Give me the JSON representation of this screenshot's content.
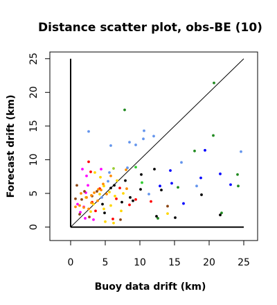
{
  "chart_data": {
    "type": "scatter",
    "title": "Distance scatter plot, obs-BE (10)",
    "xlabel": "Buoy data drift (km)",
    "ylabel": "Forecast drift (km)",
    "xlim": [
      -3,
      27
    ],
    "ylim": [
      -2,
      26
    ],
    "xticks": [
      0,
      5,
      10,
      15,
      20,
      25
    ],
    "yticks": [
      0,
      5,
      10,
      15,
      20,
      25
    ],
    "reference_line": {
      "x": [
        0,
        25
      ],
      "y": [
        0,
        25
      ]
    },
    "axes_lines": {
      "x_axis": [
        0,
        25
      ],
      "y_axis": [
        0,
        25
      ]
    },
    "grid": false,
    "legend": "none",
    "series": [
      {
        "color": "#6495ed",
        "points": [
          [
            2.6,
            14.2
          ],
          [
            5.8,
            12.1
          ],
          [
            8.5,
            12.6
          ],
          [
            9.4,
            12.2
          ],
          [
            10.6,
            14.3
          ],
          [
            10.5,
            13.1
          ],
          [
            12.0,
            13.5
          ],
          [
            8.2,
            8.8
          ],
          [
            11.3,
            4.9
          ],
          [
            5.6,
            8.1
          ],
          [
            5.4,
            6.8
          ],
          [
            4.5,
            4.4
          ],
          [
            16.0,
            9.6
          ],
          [
            18.2,
            6.1
          ],
          [
            24.6,
            11.2
          ]
        ]
      },
      {
        "color": "#0000ff",
        "points": [
          [
            14.4,
            8.4
          ],
          [
            14.6,
            6.5
          ],
          [
            12.9,
            6.1
          ],
          [
            19.4,
            11.4
          ],
          [
            18.8,
            7.3
          ],
          [
            21.6,
            7.9
          ],
          [
            23.1,
            6.3
          ],
          [
            16.3,
            3.5
          ]
        ]
      },
      {
        "color": "#32cd32",
        "points": [
          [
            10.3,
            6.6
          ],
          [
            9.4,
            8.9
          ]
        ]
      },
      {
        "color": "#228b22",
        "points": [
          [
            7.8,
            17.4
          ],
          [
            20.7,
            21.4
          ],
          [
            20.6,
            13.6
          ],
          [
            17.9,
            11.3
          ],
          [
            24.1,
            7.8
          ],
          [
            24.2,
            6.1
          ],
          [
            15.5,
            5.9
          ],
          [
            21.8,
            2.1
          ],
          [
            12.6,
            1.3
          ]
        ]
      },
      {
        "color": "#000000",
        "points": [
          [
            12.1,
            8.6
          ],
          [
            10.2,
            7.8
          ],
          [
            10.1,
            5.6
          ],
          [
            13.1,
            5.5
          ],
          [
            8.6,
            4.4
          ],
          [
            9.0,
            3.9
          ],
          [
            12.4,
            1.6
          ],
          [
            15.1,
            1.4
          ],
          [
            21.6,
            1.8
          ],
          [
            18.9,
            4.8
          ],
          [
            6.3,
            6.2
          ],
          [
            5.8,
            5.8
          ],
          [
            7.4,
            3.7
          ],
          [
            4.6,
            3.4
          ],
          [
            7.9,
            6.9
          ],
          [
            4.9,
            2.1
          ]
        ]
      },
      {
        "color": "#ff0000",
        "points": [
          [
            2.6,
            9.7
          ],
          [
            2.9,
            8.2
          ],
          [
            3.1,
            3.7
          ],
          [
            3.6,
            2.4
          ],
          [
            6.6,
            4.2
          ],
          [
            8.5,
            3.3
          ],
          [
            9.4,
            4.1
          ],
          [
            11.6,
            3.8
          ],
          [
            6.1,
            1.2
          ],
          [
            4.2,
            5.7
          ],
          [
            7.1,
            5.8
          ]
        ]
      },
      {
        "color": "#ff00ff",
        "points": [
          [
            1.7,
            8.6
          ],
          [
            4.4,
            8.6
          ],
          [
            2.3,
            7.6
          ],
          [
            2.5,
            6.2
          ],
          [
            1.9,
            3.0
          ],
          [
            1.0,
            3.4
          ],
          [
            1.4,
            2.2
          ],
          [
            2.1,
            1.3
          ],
          [
            3.3,
            1.1
          ],
          [
            2.2,
            5.1
          ]
        ]
      },
      {
        "color": "#8b4513",
        "points": [
          [
            0.9,
            6.2
          ],
          [
            2.0,
            5.3
          ],
          [
            3.1,
            4.6
          ],
          [
            0.7,
            4.2
          ],
          [
            1.3,
            1.9
          ],
          [
            2.7,
            1.5
          ],
          [
            3.8,
            5.3
          ],
          [
            1.6,
            4.1
          ],
          [
            7.2,
            1.1
          ],
          [
            14.0,
            3.1
          ]
        ]
      },
      {
        "color": "#ffd700",
        "points": [
          [
            3.5,
            8.1
          ],
          [
            4.3,
            7.4
          ],
          [
            6.7,
            6.9
          ],
          [
            4.8,
            6.1
          ],
          [
            5.6,
            5.2
          ],
          [
            6.4,
            4.6
          ],
          [
            7.3,
            2.4
          ],
          [
            5.0,
            0.8
          ],
          [
            2.9,
            2.3
          ],
          [
            5.8,
            3.2
          ],
          [
            7.6,
            5.0
          ],
          [
            14.0,
            2.0
          ],
          [
            4.2,
            4.9
          ],
          [
            6.2,
            0.6
          ],
          [
            2.2,
            4.4
          ],
          [
            3.3,
            3.4
          ],
          [
            4.8,
            2.7
          ]
        ]
      },
      {
        "color": "#ff8c00",
        "points": [
          [
            4.7,
            6.4
          ],
          [
            4.0,
            5.6
          ],
          [
            4.4,
            5.5
          ],
          [
            5.2,
            4.9
          ],
          [
            3.4,
            5.1
          ],
          [
            2.3,
            4.4
          ],
          [
            3.9,
            3.9
          ],
          [
            3.0,
            3.6
          ],
          [
            1.3,
            3.2
          ],
          [
            2.6,
            2.7
          ],
          [
            1.9,
            2.9
          ],
          [
            0.7,
            3.0
          ],
          [
            1.5,
            5.0
          ],
          [
            3.0,
            4.7
          ],
          [
            8.1,
            5.7
          ],
          [
            8.0,
            8.5
          ],
          [
            5.8,
            7.6
          ]
        ]
      },
      {
        "color": "#9acd32",
        "points": [
          [
            6.2,
            8.7
          ]
        ]
      }
    ]
  }
}
